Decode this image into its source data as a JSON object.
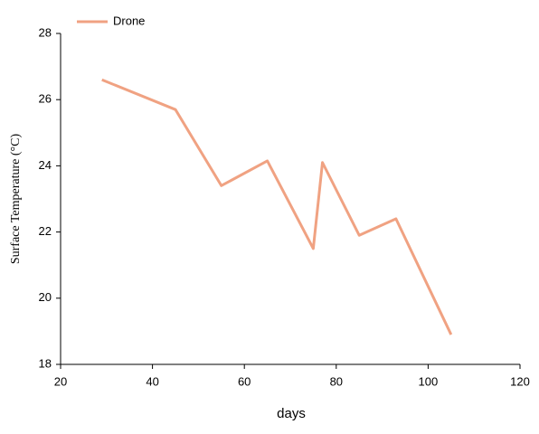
{
  "chart_data": {
    "type": "line",
    "x_label": "days",
    "y_label": "Surface Temperature (°C)",
    "series": [
      {
        "name": "Drone",
        "color": "#f0a282",
        "x": [
          29,
          45,
          55,
          65,
          75,
          77,
          85,
          93,
          105
        ],
        "values": [
          26.6,
          25.7,
          23.4,
          24.15,
          21.5,
          24.1,
          21.9,
          22.4,
          18.9
        ]
      }
    ],
    "xlim": [
      20,
      120
    ],
    "xticks": [
      20,
      40,
      60,
      80,
      100,
      120
    ],
    "ylim": [
      18,
      28
    ],
    "yticks": [
      18,
      20,
      22,
      24,
      26,
      28
    ],
    "grid": false,
    "legend": "upper left"
  }
}
